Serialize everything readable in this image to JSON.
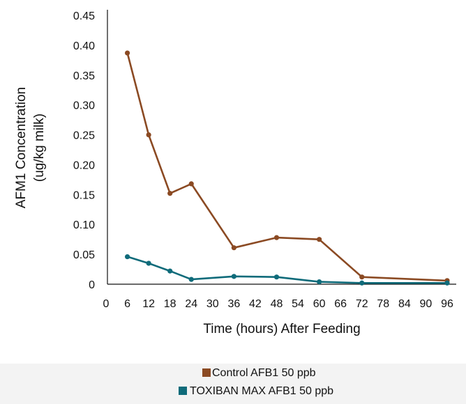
{
  "chart_data": {
    "type": "line",
    "xlabel": "Time (hours) After Feeding",
    "ylabel_lines": [
      "AFM1 Concentration",
      "(ug/kg milk)"
    ],
    "xlim": [
      0,
      96
    ],
    "ylim": [
      0,
      0.45
    ],
    "x_ticks": [
      "0",
      "6",
      "12",
      "18",
      "24",
      "30",
      "36",
      "42",
      "48",
      "54",
      "60",
      "66",
      "72",
      "78",
      "84",
      "90",
      "96"
    ],
    "x_tick_values": [
      0,
      6,
      12,
      18,
      24,
      30,
      36,
      42,
      48,
      54,
      60,
      66,
      72,
      78,
      84,
      90,
      96
    ],
    "y_ticks": [
      "0",
      "0.05",
      "0.10",
      "0.15",
      "0.20",
      "0.25",
      "0.30",
      "0.35",
      "0.40",
      "0.45"
    ],
    "y_tick_values": [
      0,
      0.05,
      0.1,
      0.15,
      0.2,
      0.25,
      0.3,
      0.35,
      0.4,
      0.45
    ],
    "grid": false,
    "legend_position": "bottom",
    "series": [
      {
        "name": "Control AFB1 50 ppb",
        "color": "#8B4A23",
        "points": [
          [
            6,
            0.387
          ],
          [
            12,
            0.25
          ],
          [
            18,
            0.152
          ],
          [
            24,
            0.168
          ],
          [
            36,
            0.061
          ],
          [
            48,
            0.078
          ],
          [
            60,
            0.075
          ],
          [
            72,
            0.012
          ],
          [
            96,
            0.006
          ]
        ]
      },
      {
        "name": "TOXIBAN MAX AFB1 50 ppb",
        "color": "#0F6B7A",
        "points": [
          [
            6,
            0.046
          ],
          [
            12,
            0.035
          ],
          [
            18,
            0.022
          ],
          [
            24,
            0.008
          ],
          [
            36,
            0.013
          ],
          [
            48,
            0.012
          ],
          [
            60,
            0.004
          ],
          [
            72,
            0.002
          ],
          [
            96,
            0.002
          ]
        ]
      }
    ]
  }
}
